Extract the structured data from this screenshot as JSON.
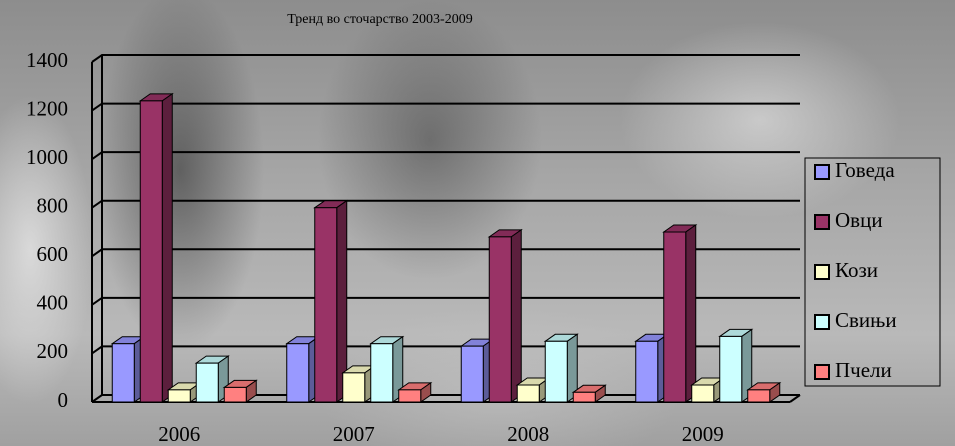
{
  "chart_data": {
    "type": "bar3d",
    "title": "Тренд во сточарство 2003-2009",
    "categories": [
      "2006",
      "2007",
      "2008",
      "2009"
    ],
    "series": [
      {
        "name": "Говеда",
        "color": "#9999ff",
        "values": [
          240,
          240,
          230,
          250
        ]
      },
      {
        "name": "Овци",
        "color": "#993366",
        "values": [
          1240,
          800,
          680,
          700
        ]
      },
      {
        "name": "Кози",
        "color": "#ffffcc",
        "values": [
          50,
          120,
          70,
          70
        ]
      },
      {
        "name": "Свињи",
        "color": "#ccffff",
        "values": [
          160,
          240,
          250,
          270
        ]
      },
      {
        "name": "Пчели",
        "color": "#ff8080",
        "values": [
          60,
          50,
          40,
          50
        ]
      }
    ],
    "ylim": [
      0,
      1400
    ],
    "yticks": [
      0,
      200,
      400,
      600,
      800,
      1000,
      1200,
      1400
    ],
    "grid": true,
    "legend": "right"
  }
}
